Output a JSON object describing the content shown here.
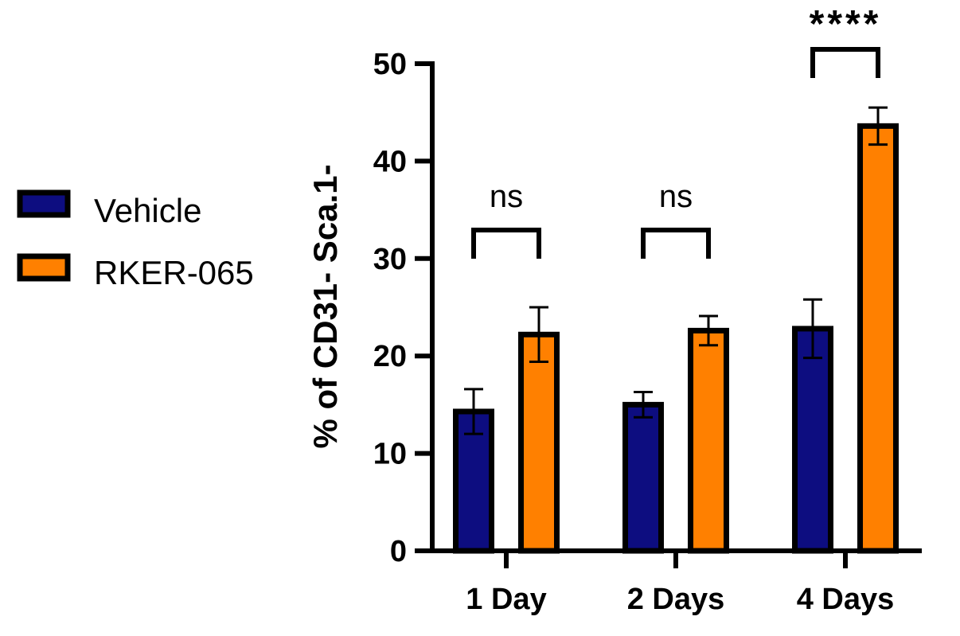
{
  "chart_data": {
    "type": "bar",
    "title": "",
    "xlabel": "",
    "ylabel": "% of CD31- Sca.1-",
    "ylim": [
      0,
      50
    ],
    "yticks": [
      "0",
      "10",
      "20",
      "30",
      "40",
      "50"
    ],
    "categories": [
      "1 Day",
      "2 Days",
      "4 Days"
    ],
    "series": [
      {
        "name": "Vehicle",
        "color": "#0d0d80",
        "values": [
          14.3,
          15.0,
          22.8
        ],
        "errors": [
          2.3,
          1.3,
          3.0
        ]
      },
      {
        "name": "RKER-065",
        "color": "#ff8000",
        "values": [
          22.2,
          22.6,
          43.6
        ],
        "errors": [
          2.8,
          1.5,
          1.9
        ]
      }
    ],
    "significance": [
      "ns",
      "ns",
      "****"
    ],
    "legend_position": "left"
  }
}
